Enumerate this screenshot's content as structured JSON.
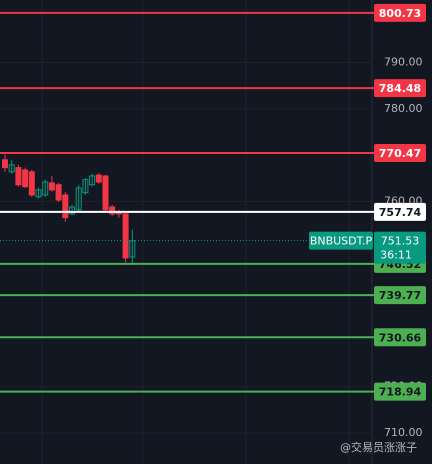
{
  "chart_data": {
    "type": "candlestick",
    "categories": [
      null,
      null,
      null,
      null,
      null,
      null,
      null,
      null,
      null,
      null,
      null,
      null,
      null,
      null,
      null,
      null,
      null,
      null,
      null,
      null
    ],
    "open": [
      769.0,
      766.4,
      767.3,
      766.8,
      766.4,
      761.0,
      761.4,
      764.0,
      763.6,
      761.4,
      757.3,
      758.2,
      761.9,
      763.6,
      765.7,
      765.5,
      758.8,
      757.8,
      757.3,
      748.0
    ],
    "high": [
      770.1,
      768.9,
      767.9,
      767.3,
      766.8,
      763.0,
      764.7,
      765.5,
      764.0,
      762.0,
      759.3,
      763.6,
      765.0,
      766.0,
      766.1,
      765.7,
      759.3,
      758.2,
      757.7,
      753.9
    ],
    "low": [
      766.4,
      766.0,
      763.2,
      762.9,
      761.0,
      760.6,
      761.0,
      762.1,
      759.9,
      755.6,
      757.0,
      757.8,
      761.4,
      763.2,
      763.8,
      757.8,
      756.9,
      756.5,
      746.8,
      746.5
    ],
    "close": [
      767.3,
      767.9,
      763.6,
      763.2,
      761.4,
      762.5,
      764.2,
      762.5,
      760.3,
      756.5,
      758.8,
      762.9,
      764.7,
      765.5,
      764.2,
      758.2,
      757.3,
      757.3,
      747.8,
      751.5
    ],
    "up_color": "#089981",
    "down_color": "#f23645",
    "ylim": [
      703.3,
      803.5
    ],
    "yticks": [
      {
        "value": 710,
        "label": "710.00"
      },
      {
        "value": 720,
        "label": "720.00"
      },
      {
        "value": 760,
        "label": "760.00"
      },
      {
        "value": 780,
        "label": "780.00"
      },
      {
        "value": 790,
        "label": "790.00"
      }
    ],
    "grid": true,
    "price_lines": [
      {
        "value": 800.73,
        "color": "#f23645"
      },
      {
        "value": 784.48,
        "color": "#f23645"
      },
      {
        "value": 770.47,
        "color": "#f23645"
      },
      {
        "value": 757.74,
        "color": "#ffffff"
      },
      {
        "value": 746.52,
        "color": "#4caf50"
      },
      {
        "value": 739.77,
        "color": "#4caf50"
      },
      {
        "value": 730.66,
        "color": "#4caf50"
      },
      {
        "value": 718.94,
        "color": "#4caf50"
      }
    ],
    "last_price": {
      "symbol": "BNBUSDT.P",
      "value": 751.53,
      "countdown": "36:11"
    },
    "watermark": "@交易员涨涨子"
  }
}
